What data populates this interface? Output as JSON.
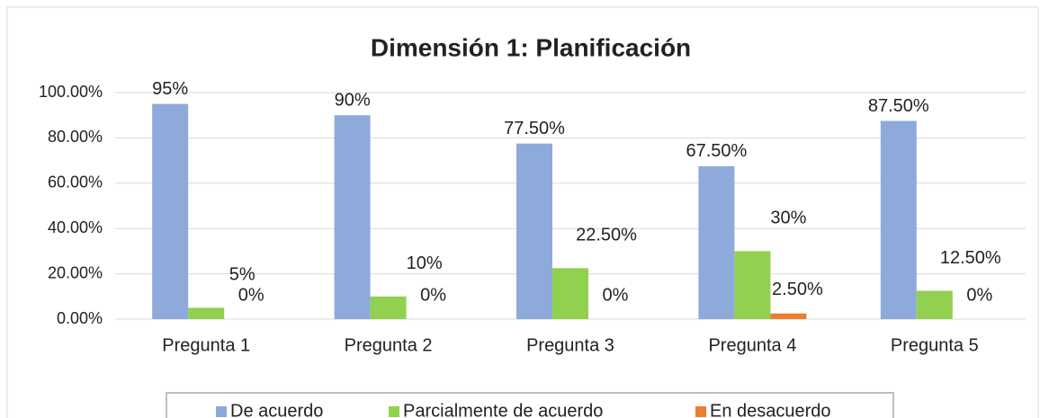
{
  "chart_data": {
    "type": "bar",
    "title": "Dimensión 1: Planificación",
    "categories": [
      "Pregunta 1",
      "Pregunta 2",
      "Pregunta 3",
      "Pregunta 4",
      "Pregunta 5"
    ],
    "series": [
      {
        "name": "De acuerdo",
        "color": "#8eaadb",
        "values": [
          95,
          90,
          77.5,
          67.5,
          87.5
        ],
        "value_labels": [
          "95%",
          "90%",
          "77.50%",
          "67.50%",
          "87.50%"
        ]
      },
      {
        "name": "Parcialmente de acuerdo",
        "color": "#92d050",
        "values": [
          5,
          10,
          22.5,
          30,
          12.5
        ],
        "value_labels": [
          "5%",
          "10%",
          "22.50%",
          "30%",
          "12.50%"
        ]
      },
      {
        "name": "En desacuerdo",
        "color": "#ed7d31",
        "values": [
          0,
          0,
          0,
          2.5,
          0
        ],
        "value_labels": [
          "0%",
          "0%",
          "0%",
          "2.50%",
          "0%"
        ]
      }
    ],
    "ylim": [
      0,
      100
    ],
    "yticks": [
      {
        "value": 0,
        "label": "0.00%"
      },
      {
        "value": 20,
        "label": "20.00%"
      },
      {
        "value": 40,
        "label": "40.00%"
      },
      {
        "value": 60,
        "label": "60.00%"
      },
      {
        "value": 80,
        "label": "80.00%"
      },
      {
        "value": 100,
        "label": "100.00%"
      }
    ],
    "grid": true,
    "legend": "bottom"
  }
}
